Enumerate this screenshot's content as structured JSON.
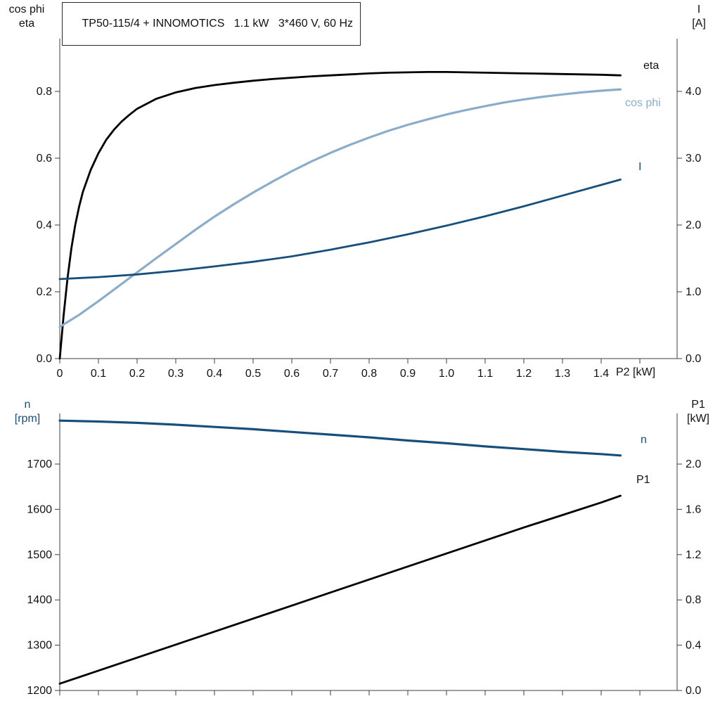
{
  "title": "TP50-115/4 + INNOMOTICS   1.1 kW   3*460 V, 60 Hz",
  "colors": {
    "black": "#111111",
    "light_blue": "#8aadcc",
    "dark_blue": "#174f7c",
    "axis": "#3f3f3f"
  },
  "chart_data": [
    {
      "type": "line",
      "title": "TP50-115/4 + INNOMOTICS   1.1 kW   3*460 V, 60 Hz",
      "x_axis_label": "P2 [kW]",
      "left_axis_title_lines": [
        "cos phi",
        "eta"
      ],
      "right_axis_title_lines": [
        "I",
        "[A]"
      ],
      "x_tick_values": [
        0,
        0.1,
        0.2,
        0.3,
        0.4,
        0.5,
        0.6,
        0.7,
        0.8,
        0.9,
        1.0,
        1.1,
        1.2,
        1.3,
        1.4,
        1.5
      ],
      "x_tick_labels": [
        "0",
        "0.1",
        "0.2",
        "0.3",
        "0.4",
        "0.5",
        "0.6",
        "0.7",
        "0.8",
        "0.9",
        "1.0",
        "1.1",
        "1.2",
        "1.3",
        "1.4",
        ""
      ],
      "left_axis": {
        "min": 0,
        "max": 0.96,
        "tick_values": [
          0,
          0.2,
          0.4,
          0.6,
          0.8
        ],
        "tick_labels": [
          "0.0",
          "0.2",
          "0.4",
          "0.6",
          "0.8"
        ]
      },
      "right_axis": {
        "min": 0,
        "max": 4.8,
        "tick_values": [
          0,
          1,
          2,
          3,
          4
        ],
        "tick_labels": [
          "0.0",
          "1.0",
          "2.0",
          "3.0",
          "4.0"
        ]
      },
      "grid": false,
      "series": [
        {
          "name": "eta",
          "axis": "left",
          "color": "#000000",
          "width": 2.8,
          "points": [
            [
              0,
              0
            ],
            [
              0.01,
              0.13
            ],
            [
              0.02,
              0.24
            ],
            [
              0.03,
              0.33
            ],
            [
              0.04,
              0.4
            ],
            [
              0.05,
              0.455
            ],
            [
              0.06,
              0.5
            ],
            [
              0.08,
              0.565
            ],
            [
              0.1,
              0.615
            ],
            [
              0.12,
              0.655
            ],
            [
              0.14,
              0.685
            ],
            [
              0.16,
              0.71
            ],
            [
              0.18,
              0.73
            ],
            [
              0.2,
              0.748
            ],
            [
              0.25,
              0.778
            ],
            [
              0.3,
              0.797
            ],
            [
              0.35,
              0.81
            ],
            [
              0.4,
              0.819
            ],
            [
              0.45,
              0.826
            ],
            [
              0.5,
              0.832
            ],
            [
              0.55,
              0.837
            ],
            [
              0.6,
              0.841
            ],
            [
              0.65,
              0.845
            ],
            [
              0.7,
              0.848
            ],
            [
              0.75,
              0.851
            ],
            [
              0.8,
              0.854
            ],
            [
              0.85,
              0.856
            ],
            [
              0.9,
              0.857
            ],
            [
              0.95,
              0.858
            ],
            [
              1.0,
              0.858
            ],
            [
              1.05,
              0.857
            ],
            [
              1.1,
              0.856
            ],
            [
              1.15,
              0.855
            ],
            [
              1.2,
              0.854
            ],
            [
              1.25,
              0.853
            ],
            [
              1.3,
              0.852
            ],
            [
              1.35,
              0.851
            ],
            [
              1.4,
              0.85
            ],
            [
              1.45,
              0.848
            ]
          ]
        },
        {
          "name": "cos phi",
          "axis": "left",
          "color": "#8aadcc",
          "width": 3.2,
          "points": [
            [
              0,
              0.095
            ],
            [
              0.05,
              0.131
            ],
            [
              0.1,
              0.172
            ],
            [
              0.15,
              0.215
            ],
            [
              0.2,
              0.258
            ],
            [
              0.25,
              0.301
            ],
            [
              0.3,
              0.343
            ],
            [
              0.35,
              0.385
            ],
            [
              0.4,
              0.425
            ],
            [
              0.45,
              0.462
            ],
            [
              0.5,
              0.497
            ],
            [
              0.55,
              0.53
            ],
            [
              0.6,
              0.561
            ],
            [
              0.65,
              0.59
            ],
            [
              0.7,
              0.616
            ],
            [
              0.75,
              0.64
            ],
            [
              0.8,
              0.662
            ],
            [
              0.85,
              0.682
            ],
            [
              0.9,
              0.7
            ],
            [
              0.95,
              0.716
            ],
            [
              1.0,
              0.731
            ],
            [
              1.05,
              0.744
            ],
            [
              1.1,
              0.756
            ],
            [
              1.15,
              0.767
            ],
            [
              1.2,
              0.776
            ],
            [
              1.25,
              0.784
            ],
            [
              1.3,
              0.791
            ],
            [
              1.35,
              0.797
            ],
            [
              1.4,
              0.802
            ],
            [
              1.45,
              0.806
            ]
          ]
        },
        {
          "name": "I",
          "axis": "right",
          "color": "#174f7c",
          "width": 2.8,
          "points": [
            [
              0,
              1.19
            ],
            [
              0.1,
              1.22
            ],
            [
              0.2,
              1.26
            ],
            [
              0.3,
              1.315
            ],
            [
              0.4,
              1.38
            ],
            [
              0.5,
              1.45
            ],
            [
              0.6,
              1.53
            ],
            [
              0.7,
              1.63
            ],
            [
              0.8,
              1.74
            ],
            [
              0.9,
              1.86
            ],
            [
              1.0,
              1.99
            ],
            [
              1.1,
              2.13
            ],
            [
              1.2,
              2.28
            ],
            [
              1.3,
              2.44
            ],
            [
              1.4,
              2.6
            ],
            [
              1.45,
              2.68
            ]
          ]
        }
      ]
    },
    {
      "type": "line",
      "x_axis_label": "",
      "left_axis_title_lines": [
        "n",
        "[rpm]"
      ],
      "right_axis_title_lines": [
        "P1",
        "[kW]"
      ],
      "x_tick_values": [
        0,
        0.1,
        0.2,
        0.3,
        0.4,
        0.5,
        0.6,
        0.7,
        0.8,
        0.9,
        1.0,
        1.1,
        1.2,
        1.3,
        1.4,
        1.5
      ],
      "x_tick_labels": [],
      "left_axis": {
        "min": 1200,
        "max": 1812,
        "tick_values": [
          1200,
          1300,
          1400,
          1500,
          1600,
          1700
        ],
        "tick_labels": [
          "1200",
          "1300",
          "1400",
          "1500",
          "1600",
          "1700"
        ]
      },
      "right_axis": {
        "min": 0,
        "max": 2.45,
        "tick_values": [
          0,
          0.4,
          0.8,
          1.2,
          1.6,
          2.0
        ],
        "tick_labels": [
          "0.0",
          "0.4",
          "0.8",
          "1.2",
          "1.6",
          "2.0"
        ]
      },
      "grid": false,
      "series": [
        {
          "name": "n",
          "axis": "left",
          "color": "#174f7c",
          "width": 3.2,
          "points": [
            [
              0,
              1796
            ],
            [
              0.1,
              1794
            ],
            [
              0.2,
              1791
            ],
            [
              0.3,
              1787
            ],
            [
              0.4,
              1782
            ],
            [
              0.5,
              1777
            ],
            [
              0.6,
              1771
            ],
            [
              0.7,
              1765
            ],
            [
              0.8,
              1759
            ],
            [
              0.9,
              1752
            ],
            [
              1.0,
              1746
            ],
            [
              1.1,
              1739
            ],
            [
              1.2,
              1733
            ],
            [
              1.3,
              1727
            ],
            [
              1.4,
              1722
            ],
            [
              1.45,
              1719
            ]
          ]
        },
        {
          "name": "P1",
          "axis": "right",
          "color": "#000000",
          "width": 2.8,
          "points": [
            [
              0,
              0.06
            ],
            [
              0.1,
              0.175
            ],
            [
              0.2,
              0.29
            ],
            [
              0.3,
              0.405
            ],
            [
              0.4,
              0.52
            ],
            [
              0.5,
              0.635
            ],
            [
              0.6,
              0.75
            ],
            [
              0.7,
              0.865
            ],
            [
              0.8,
              0.98
            ],
            [
              0.9,
              1.095
            ],
            [
              1.0,
              1.21
            ],
            [
              1.1,
              1.325
            ],
            [
              1.2,
              1.44
            ],
            [
              1.3,
              1.55
            ],
            [
              1.4,
              1.66
            ],
            [
              1.45,
              1.72
            ]
          ]
        }
      ]
    }
  ]
}
